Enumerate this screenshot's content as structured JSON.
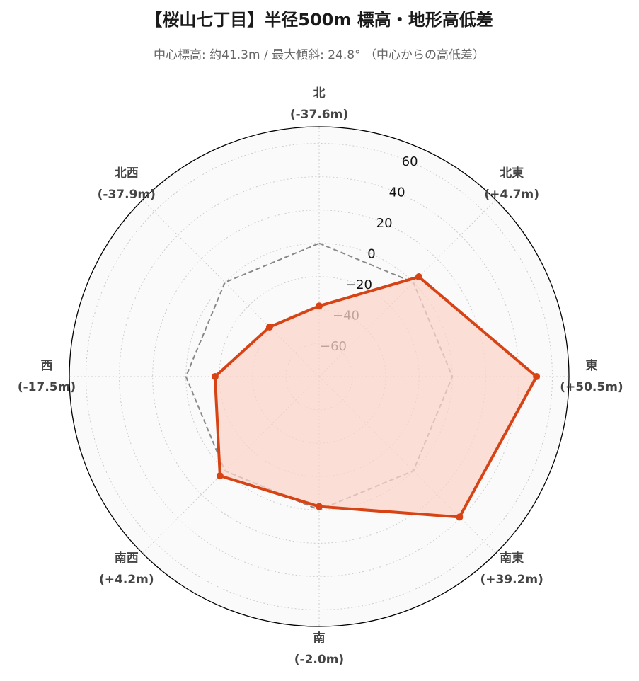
{
  "chart_data": {
    "type": "radar",
    "title": "【桜山七丁目】半径500m 標高・地形高低差",
    "subtitle": "中心標高: 約41.3m / 最大傾斜: 24.8° （中心からの高低差）",
    "rlim": [
      -80,
      70
    ],
    "rticks": [
      -60,
      -40,
      -20,
      0,
      20,
      40,
      60
    ],
    "rtick_labels": [
      "−60",
      "−40",
      "−20",
      "0",
      "20",
      "40",
      "60"
    ],
    "grid": true,
    "directions": [
      {
        "name": "北",
        "value_label": "(-37.6m)"
      },
      {
        "name": "北東",
        "value_label": "(+4.7m)"
      },
      {
        "name": "東",
        "value_label": "(+50.5m)"
      },
      {
        "name": "南東",
        "value_label": "(+39.2m)"
      },
      {
        "name": "南",
        "value_label": "(-2.0m)"
      },
      {
        "name": "南西",
        "value_label": "(+4.2m)"
      },
      {
        "name": "西",
        "value_label": "(-17.5m)"
      },
      {
        "name": "北西",
        "value_label": "(-37.9m)"
      }
    ],
    "series": [
      {
        "values": [
          -37.6,
          4.7,
          50.5,
          39.2,
          -2.0,
          4.2,
          -17.5,
          -37.9
        ],
        "color": "#d84315",
        "fill": "#fbd5ca",
        "style": "solid"
      },
      {
        "values": [
          0,
          0,
          0,
          0,
          0,
          0,
          0,
          0
        ],
        "color": "#888888",
        "style": "dashed"
      }
    ]
  }
}
